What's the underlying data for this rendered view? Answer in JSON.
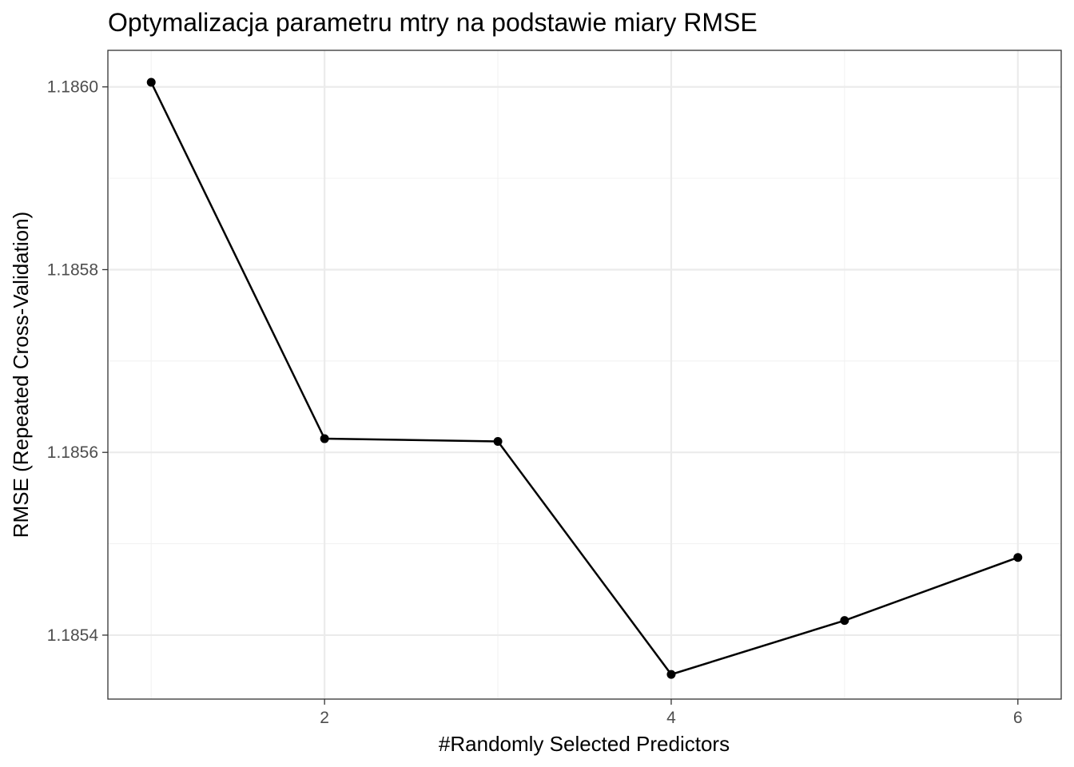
{
  "chart_data": {
    "type": "line",
    "title": "Optymalizacja parametru mtry na podstawie miary RMSE",
    "xlabel": "#Randomly Selected Predictors",
    "ylabel": "RMSE (Repeated Cross-Validation)",
    "x": [
      1,
      2,
      3,
      4,
      5,
      6
    ],
    "series": [
      {
        "values": [
          1.186005,
          1.185615,
          1.185612,
          1.185357,
          1.185416,
          1.185485
        ]
      }
    ],
    "xlim": [
      0.75,
      6.25
    ],
    "ylim": [
      1.18533,
      1.18604
    ],
    "xticks": [
      2,
      4,
      6
    ],
    "xtick_labels": [
      "2",
      "4",
      "6"
    ],
    "xminor": [
      1,
      3,
      5
    ],
    "yticks": [
      1.1854,
      1.1856,
      1.1858,
      1.186
    ],
    "ytick_labels": [
      "1.1854",
      "1.1856",
      "1.1858",
      "1.1860"
    ],
    "yminor": [
      1.1855,
      1.1857,
      1.1859
    ],
    "grid": true,
    "legend": "none",
    "colors": {
      "line": "#000000",
      "point": "#000000",
      "grid": "#ebebeb",
      "border": "#333333",
      "tick_text": "#4d4d4d"
    }
  }
}
